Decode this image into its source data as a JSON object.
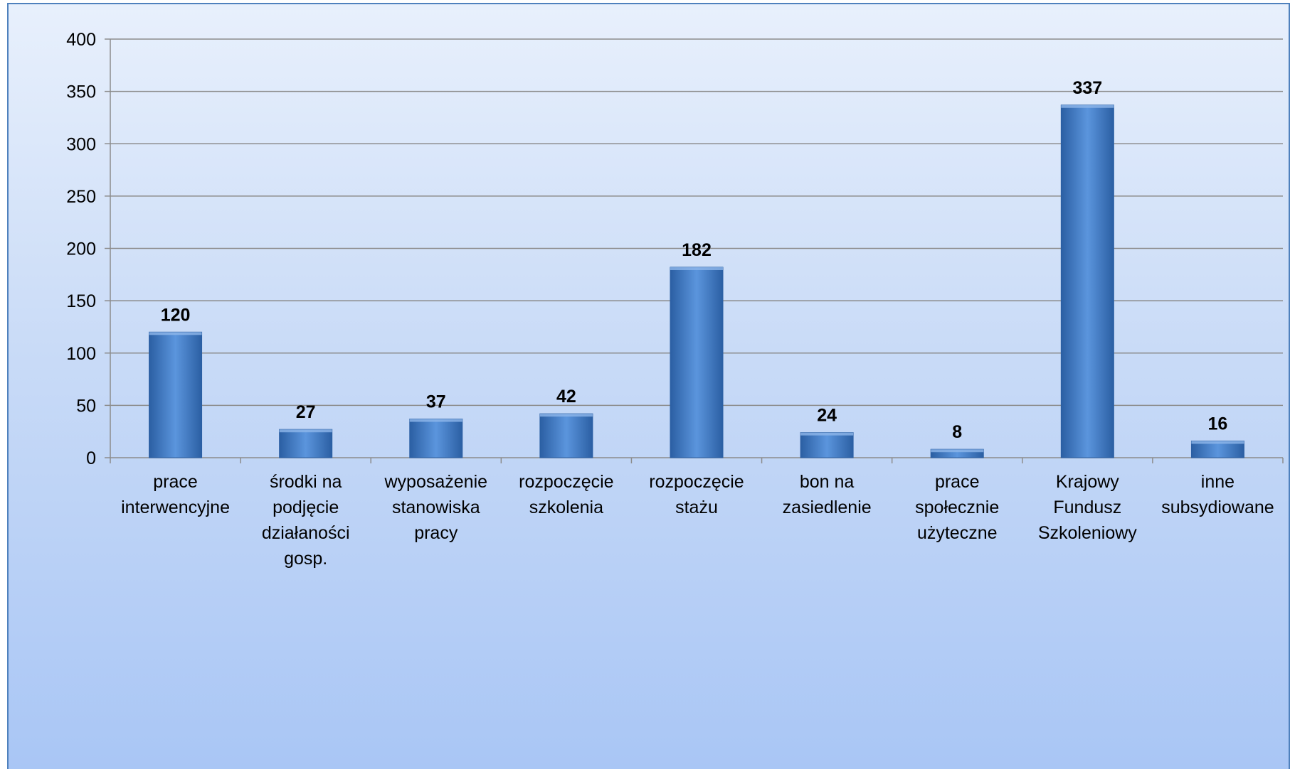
{
  "chart_data": {
    "type": "bar",
    "categories": [
      [
        "prace",
        "interwencyjne"
      ],
      [
        "środki na",
        "podjęcie",
        "działaności",
        "gosp."
      ],
      [
        "wyposażenie",
        "stanowiska",
        "pracy"
      ],
      [
        "rozpoczęcie",
        "szkolenia"
      ],
      [
        "rozpoczęcie",
        "stażu"
      ],
      [
        "bon na",
        "zasiedlenie"
      ],
      [
        "prace",
        "społecznie",
        "użyteczne"
      ],
      [
        "Krajowy",
        "Fundusz",
        "Szkoleniowy"
      ],
      [
        "inne",
        "subsydiowane"
      ]
    ],
    "values": [
      120,
      27,
      37,
      42,
      182,
      24,
      8,
      337,
      16
    ],
    "data_labels": [
      "120",
      "27",
      "37",
      "42",
      "182",
      "24",
      "8",
      "337",
      "16"
    ],
    "title": "",
    "xlabel": "",
    "ylabel": "",
    "ylim": [
      0,
      400
    ],
    "yticks": [
      "0",
      "50",
      "100",
      "150",
      "200",
      "250",
      "300",
      "350",
      "400"
    ],
    "grid": true,
    "legend": "none",
    "colors": {
      "bar_light": "#5b95dd",
      "bar_mid": "#3f7ccb",
      "bar_dark": "#2b5fa3",
      "grid": "#8c8c8c",
      "border": "#4f81bd"
    }
  }
}
